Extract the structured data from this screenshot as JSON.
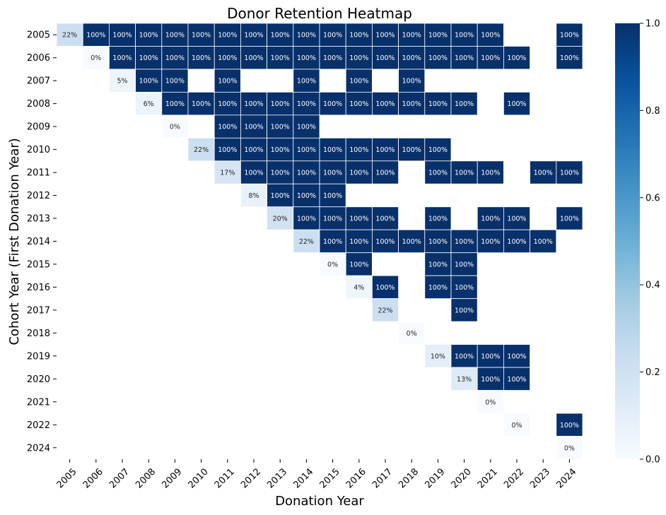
{
  "chart_data": {
    "type": "heatmap",
    "title": "Donor Retention Heatmap",
    "xlabel": "Donation Year",
    "ylabel": "Cohort Year (First Donation Year)",
    "x": [
      "2005",
      "2006",
      "2007",
      "2008",
      "2009",
      "2010",
      "2011",
      "2012",
      "2013",
      "2014",
      "2015",
      "2016",
      "2017",
      "2018",
      "2019",
      "2020",
      "2021",
      "2022",
      "2023",
      "2024"
    ],
    "y": [
      "2005",
      "2006",
      "2007",
      "2008",
      "2009",
      "2010",
      "2011",
      "2012",
      "2013",
      "2014",
      "2015",
      "2016",
      "2017",
      "2018",
      "2019",
      "2020",
      "2021",
      "2022",
      "2024"
    ],
    "values": [
      [
        0.22,
        1,
        1,
        1,
        1,
        1,
        1,
        1,
        1,
        1,
        1,
        1,
        1,
        1,
        1,
        1,
        1,
        null,
        null,
        1
      ],
      [
        null,
        0,
        1,
        1,
        1,
        1,
        1,
        1,
        1,
        1,
        1,
        1,
        1,
        1,
        1,
        1,
        1,
        1,
        null,
        1
      ],
      [
        null,
        null,
        0.05,
        1,
        1,
        null,
        1,
        null,
        null,
        1,
        null,
        1,
        null,
        1,
        null,
        null,
        null,
        null,
        null,
        null
      ],
      [
        null,
        null,
        null,
        0.06,
        1,
        1,
        1,
        1,
        1,
        1,
        1,
        1,
        1,
        1,
        1,
        1,
        null,
        1,
        null,
        null
      ],
      [
        null,
        null,
        null,
        null,
        0,
        null,
        1,
        1,
        1,
        1,
        null,
        null,
        null,
        null,
        null,
        null,
        null,
        null,
        null,
        null
      ],
      [
        null,
        null,
        null,
        null,
        null,
        0.22,
        1,
        1,
        1,
        1,
        1,
        1,
        1,
        1,
        1,
        null,
        null,
        null,
        null,
        null
      ],
      [
        null,
        null,
        null,
        null,
        null,
        null,
        0.17,
        1,
        1,
        1,
        1,
        1,
        1,
        null,
        1,
        1,
        1,
        null,
        1,
        1
      ],
      [
        null,
        null,
        null,
        null,
        null,
        null,
        null,
        0.08,
        1,
        1,
        1,
        null,
        null,
        null,
        null,
        null,
        null,
        null,
        null,
        null
      ],
      [
        null,
        null,
        null,
        null,
        null,
        null,
        null,
        null,
        0.2,
        1,
        1,
        1,
        1,
        null,
        1,
        null,
        1,
        1,
        null,
        1
      ],
      [
        null,
        null,
        null,
        null,
        null,
        null,
        null,
        null,
        null,
        0.22,
        1,
        1,
        1,
        1,
        1,
        1,
        1,
        1,
        1,
        null
      ],
      [
        null,
        null,
        null,
        null,
        null,
        null,
        null,
        null,
        null,
        null,
        0,
        1,
        null,
        null,
        1,
        1,
        null,
        null,
        null,
        null
      ],
      [
        null,
        null,
        null,
        null,
        null,
        null,
        null,
        null,
        null,
        null,
        null,
        0.04,
        1,
        null,
        1,
        1,
        null,
        null,
        null,
        null
      ],
      [
        null,
        null,
        null,
        null,
        null,
        null,
        null,
        null,
        null,
        null,
        null,
        null,
        0.22,
        null,
        null,
        1,
        null,
        null,
        null,
        null
      ],
      [
        null,
        null,
        null,
        null,
        null,
        null,
        null,
        null,
        null,
        null,
        null,
        null,
        null,
        0,
        null,
        null,
        null,
        null,
        null,
        null
      ],
      [
        null,
        null,
        null,
        null,
        null,
        null,
        null,
        null,
        null,
        null,
        null,
        null,
        null,
        null,
        0.1,
        1,
        1,
        1,
        null,
        null
      ],
      [
        null,
        null,
        null,
        null,
        null,
        null,
        null,
        null,
        null,
        null,
        null,
        null,
        null,
        null,
        null,
        0.13,
        1,
        1,
        null,
        null
      ],
      [
        null,
        null,
        null,
        null,
        null,
        null,
        null,
        null,
        null,
        null,
        null,
        null,
        null,
        null,
        null,
        null,
        0,
        null,
        null,
        null
      ],
      [
        null,
        null,
        null,
        null,
        null,
        null,
        null,
        null,
        null,
        null,
        null,
        null,
        null,
        null,
        null,
        null,
        null,
        0,
        null,
        1
      ],
      [
        null,
        null,
        null,
        null,
        null,
        null,
        null,
        null,
        null,
        null,
        null,
        null,
        null,
        null,
        null,
        null,
        null,
        null,
        null,
        0
      ]
    ],
    "value_format": "percent",
    "colormap": "Blues",
    "colormap_stops": [
      "#f7fbff",
      "#deebf7",
      "#c6dbef",
      "#9ecae1",
      "#6baed6",
      "#4292c6",
      "#2171b5",
      "#08519c",
      "#08306b"
    ],
    "vmin": 0,
    "vmax": 1,
    "colorbar_ticks": [
      "0.0",
      "0.2",
      "0.4",
      "0.6",
      "0.8",
      "1.0"
    ],
    "grid": "white cell borders"
  }
}
